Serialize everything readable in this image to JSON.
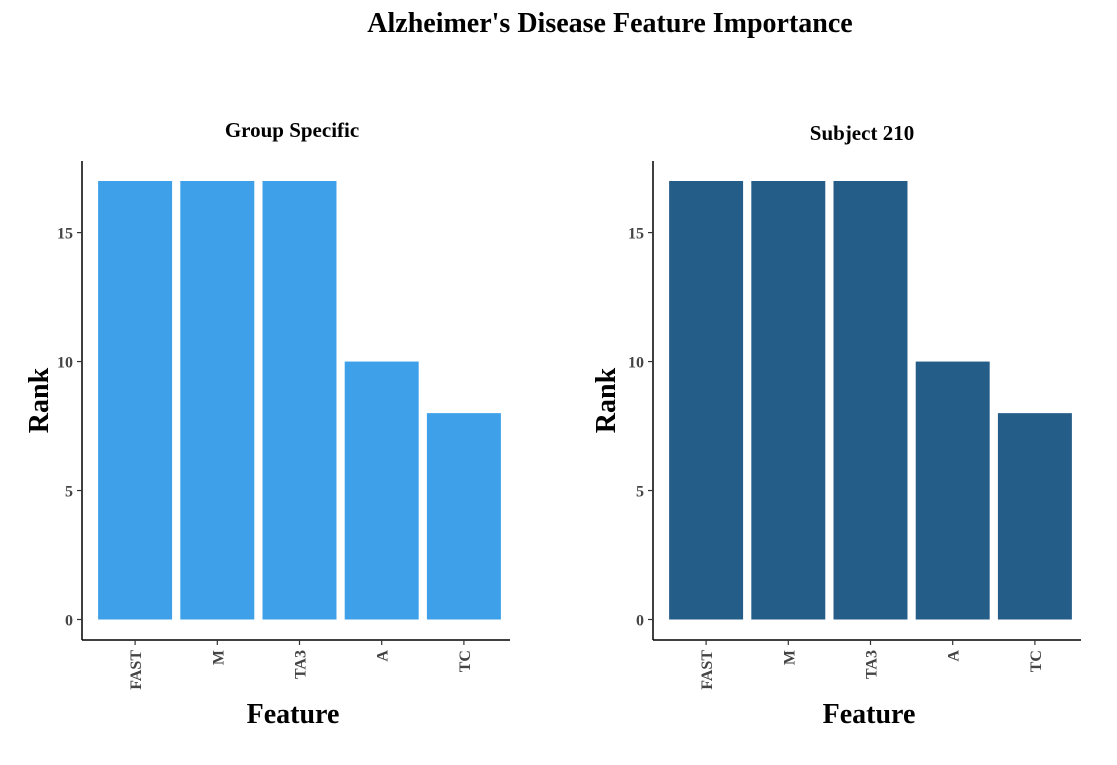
{
  "figure": {
    "title": "Alzheimer's Disease Feature Importance"
  },
  "chart_data": [
    {
      "type": "bar",
      "title": "Group Specific",
      "xlabel": "Feature",
      "ylabel": "Rank",
      "categories": [
        "FAST",
        "M",
        "TA3",
        "A",
        "TC"
      ],
      "values": [
        17,
        17,
        17,
        10,
        8
      ],
      "yticks": [
        0,
        5,
        10,
        15
      ],
      "ylim": [
        0,
        17.85
      ],
      "color": "#3da0e9",
      "grid": false
    },
    {
      "type": "bar",
      "title": "Subject 210",
      "xlabel": "Feature",
      "ylabel": "Rank",
      "categories": [
        "FAST",
        "M",
        "TA3",
        "A",
        "TC"
      ],
      "values": [
        17,
        17,
        17,
        10,
        8
      ],
      "yticks": [
        0,
        5,
        10,
        15
      ],
      "ylim": [
        0,
        17.85
      ],
      "color": "#255d89",
      "grid": false
    }
  ]
}
